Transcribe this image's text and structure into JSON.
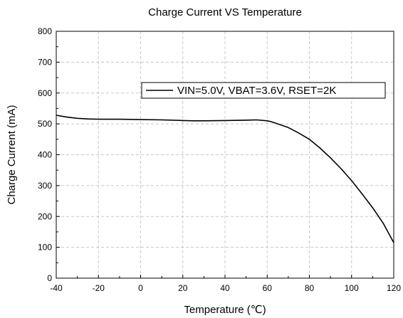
{
  "chart_data": {
    "type": "line",
    "title": "Charge Current VS Temperature",
    "xlabel": "Temperature (℃)",
    "ylabel": "Charge Current (mA)",
    "xlim": [
      -40,
      120
    ],
    "ylim": [
      0,
      800
    ],
    "xticks": [
      "-40",
      "-20",
      "0",
      "20",
      "40",
      "60",
      "80",
      "100",
      "120"
    ],
    "yticks": [
      "0",
      "100",
      "200",
      "300",
      "400",
      "500",
      "600",
      "700",
      "800"
    ],
    "grid": true,
    "legend_position": "top-right",
    "series": [
      {
        "name": "VIN=5.0V, VBAT=3.6V, RSET=2K",
        "color": "#000000",
        "x": [
          -40,
          -35,
          -30,
          -25,
          -20,
          -10,
          0,
          10,
          20,
          25,
          30,
          40,
          50,
          55,
          60,
          62,
          65,
          70,
          75,
          80,
          85,
          90,
          95,
          100,
          105,
          110,
          115,
          120
        ],
        "y": [
          528,
          522,
          518,
          516,
          515,
          515,
          514,
          513,
          511,
          510,
          510,
          511,
          512,
          513,
          510,
          507,
          500,
          488,
          470,
          450,
          422,
          390,
          355,
          316,
          273,
          228,
          178,
          115
        ]
      }
    ]
  }
}
